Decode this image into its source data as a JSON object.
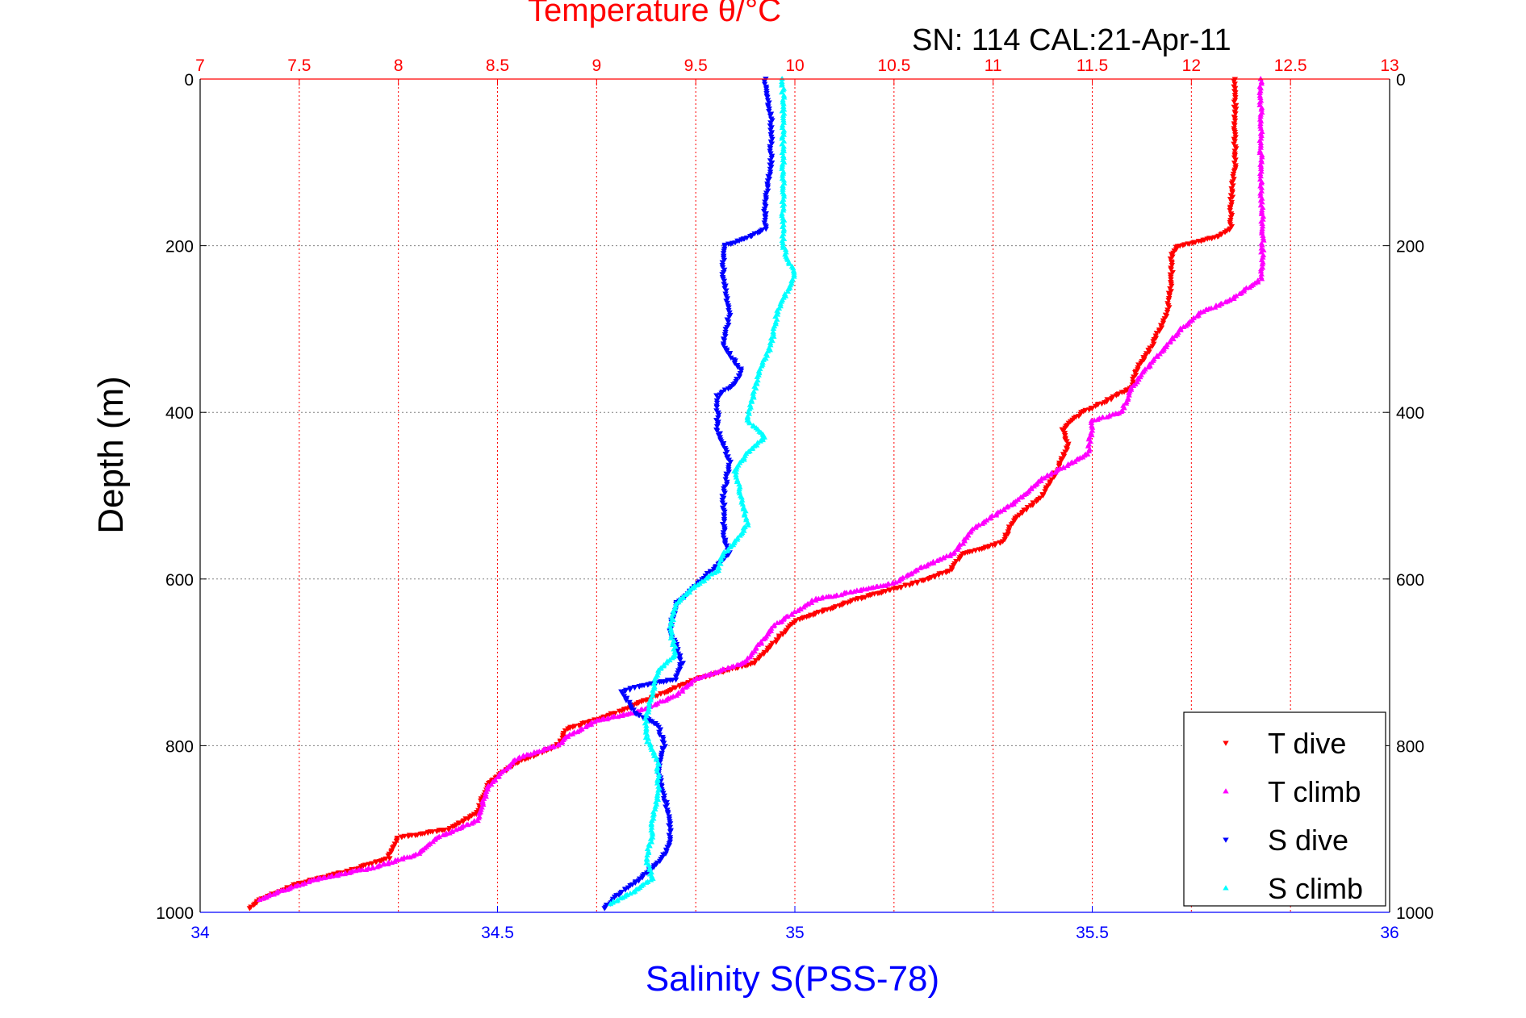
{
  "chart_data": {
    "type": "scatter",
    "title": "Temperature θ/°C",
    "subtitle": "SN: 114  CAL:21-Apr-11",
    "ylabel": "Depth (m)",
    "xlabel_bottom": "Salinity S(PSS-78)",
    "xlabel_top": "Temperature θ/°C",
    "ylim": [
      1000,
      0
    ],
    "y_reversed": true,
    "xlim_temperature": [
      7,
      13
    ],
    "xlim_salinity": [
      34,
      36
    ],
    "yticks": [
      "0",
      "200",
      "400",
      "600",
      "800",
      "1000"
    ],
    "xticks_temperature": [
      "7",
      "7.5",
      "8",
      "8.5",
      "9",
      "9.5",
      "10",
      "10.5",
      "11",
      "11.5",
      "12",
      "12.5",
      "13"
    ],
    "xticks_salinity": [
      "34",
      "34.5",
      "35",
      "35.5",
      "36"
    ],
    "grid": true,
    "legend_position": "bottom-right",
    "colors": {
      "temperature_axis": "#ff0000",
      "salinity_axis": "#0000ff",
      "grid": "#808080",
      "box": "#000000"
    },
    "series": [
      {
        "name": "T dive",
        "axis": "temperature",
        "color": "#ff0000",
        "marker": "triangle-down",
        "points": [
          [
            12.22,
            0
          ],
          [
            12.22,
            50
          ],
          [
            12.22,
            100
          ],
          [
            12.2,
            150
          ],
          [
            12.2,
            180
          ],
          [
            12.12,
            190
          ],
          [
            11.93,
            200
          ],
          [
            11.9,
            210
          ],
          [
            11.9,
            240
          ],
          [
            11.88,
            280
          ],
          [
            11.8,
            320
          ],
          [
            11.72,
            350
          ],
          [
            11.7,
            370
          ],
          [
            11.58,
            385
          ],
          [
            11.45,
            400
          ],
          [
            11.35,
            420
          ],
          [
            11.38,
            440
          ],
          [
            11.32,
            470
          ],
          [
            11.25,
            500
          ],
          [
            11.1,
            530
          ],
          [
            11.05,
            555
          ],
          [
            10.85,
            570
          ],
          [
            10.78,
            590
          ],
          [
            10.6,
            605
          ],
          [
            10.3,
            625
          ],
          [
            10.0,
            650
          ],
          [
            9.8,
            700
          ],
          [
            9.5,
            720
          ],
          [
            9.35,
            735
          ],
          [
            9.1,
            760
          ],
          [
            8.85,
            780
          ],
          [
            8.8,
            800
          ],
          [
            8.6,
            820
          ],
          [
            8.45,
            845
          ],
          [
            8.4,
            880
          ],
          [
            8.25,
            900
          ],
          [
            8.0,
            910
          ],
          [
            7.95,
            935
          ],
          [
            7.75,
            950
          ],
          [
            7.5,
            965
          ],
          [
            7.3,
            985
          ],
          [
            7.25,
            995
          ]
        ]
      },
      {
        "name": "T climb",
        "axis": "temperature",
        "color": "#ff00ff",
        "marker": "triangle-up",
        "points": [
          [
            12.35,
            0
          ],
          [
            12.35,
            100
          ],
          [
            12.36,
            200
          ],
          [
            12.35,
            240
          ],
          [
            12.2,
            265
          ],
          [
            12.05,
            280
          ],
          [
            11.95,
            300
          ],
          [
            11.8,
            340
          ],
          [
            11.7,
            370
          ],
          [
            11.65,
            400
          ],
          [
            11.5,
            410
          ],
          [
            11.48,
            450
          ],
          [
            11.4,
            460
          ],
          [
            11.25,
            480
          ],
          [
            11.1,
            510
          ],
          [
            10.9,
            540
          ],
          [
            10.8,
            570
          ],
          [
            10.65,
            585
          ],
          [
            10.5,
            605
          ],
          [
            10.1,
            625
          ],
          [
            9.9,
            655
          ],
          [
            9.75,
            700
          ],
          [
            9.5,
            720
          ],
          [
            9.4,
            740
          ],
          [
            9.2,
            760
          ],
          [
            9.0,
            770
          ],
          [
            8.85,
            790
          ],
          [
            8.8,
            800
          ],
          [
            8.6,
            815
          ],
          [
            8.45,
            850
          ],
          [
            8.4,
            890
          ],
          [
            8.2,
            910
          ],
          [
            8.1,
            930
          ],
          [
            7.9,
            945
          ],
          [
            7.6,
            960
          ],
          [
            7.4,
            975
          ],
          [
            7.3,
            985
          ]
        ]
      },
      {
        "name": "S dive",
        "axis": "salinity",
        "color": "#0000ff",
        "marker": "triangle-down",
        "points": [
          [
            34.95,
            0
          ],
          [
            34.96,
            50
          ],
          [
            34.96,
            100
          ],
          [
            34.95,
            150
          ],
          [
            34.95,
            180
          ],
          [
            34.92,
            190
          ],
          [
            34.88,
            200
          ],
          [
            34.88,
            240
          ],
          [
            34.89,
            280
          ],
          [
            34.88,
            320
          ],
          [
            34.91,
            350
          ],
          [
            34.9,
            365
          ],
          [
            34.87,
            380
          ],
          [
            34.87,
            420
          ],
          [
            34.88,
            440
          ],
          [
            34.89,
            460
          ],
          [
            34.88,
            500
          ],
          [
            34.88,
            550
          ],
          [
            34.89,
            570
          ],
          [
            34.86,
            590
          ],
          [
            34.83,
            610
          ],
          [
            34.8,
            630
          ],
          [
            34.79,
            660
          ],
          [
            34.81,
            700
          ],
          [
            34.8,
            720
          ],
          [
            34.74,
            728
          ],
          [
            34.71,
            735
          ],
          [
            34.73,
            760
          ],
          [
            34.77,
            775
          ],
          [
            34.78,
            800
          ],
          [
            34.77,
            830
          ],
          [
            34.78,
            860
          ],
          [
            34.79,
            890
          ],
          [
            34.79,
            920
          ],
          [
            34.77,
            940
          ],
          [
            34.74,
            960
          ],
          [
            34.7,
            980
          ],
          [
            34.68,
            995
          ]
        ]
      },
      {
        "name": "S climb",
        "axis": "salinity",
        "color": "#00ffff",
        "marker": "triangle-up",
        "points": [
          [
            34.98,
            0
          ],
          [
            34.98,
            50
          ],
          [
            34.98,
            100
          ],
          [
            34.98,
            150
          ],
          [
            34.98,
            200
          ],
          [
            34.99,
            220
          ],
          [
            35.0,
            235
          ],
          [
            34.99,
            250
          ],
          [
            34.97,
            280
          ],
          [
            34.96,
            320
          ],
          [
            34.94,
            350
          ],
          [
            34.93,
            380
          ],
          [
            34.92,
            410
          ],
          [
            34.95,
            430
          ],
          [
            34.92,
            450
          ],
          [
            34.9,
            470
          ],
          [
            34.91,
            500
          ],
          [
            34.92,
            535
          ],
          [
            34.9,
            555
          ],
          [
            34.88,
            570
          ],
          [
            34.87,
            590
          ],
          [
            34.83,
            610
          ],
          [
            34.8,
            630
          ],
          [
            34.79,
            660
          ],
          [
            34.8,
            690
          ],
          [
            34.77,
            710
          ],
          [
            34.76,
            740
          ],
          [
            34.75,
            765
          ],
          [
            34.75,
            790
          ],
          [
            34.77,
            820
          ],
          [
            34.77,
            860
          ],
          [
            34.76,
            890
          ],
          [
            34.76,
            910
          ],
          [
            34.75,
            935
          ],
          [
            34.76,
            960
          ],
          [
            34.73,
            975
          ],
          [
            34.69,
            990
          ]
        ]
      }
    ]
  }
}
